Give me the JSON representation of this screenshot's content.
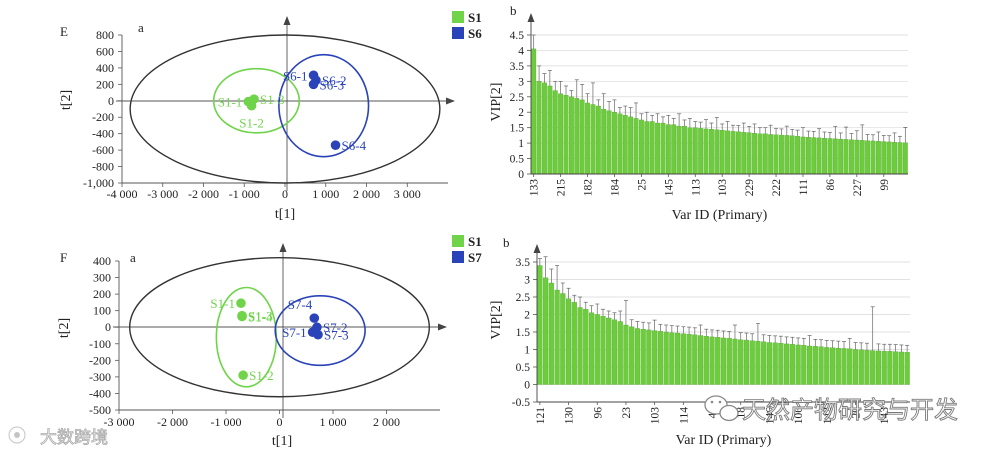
{
  "colors": {
    "s1": "#6fd44a",
    "other": "#2a43b8",
    "bar": "#6ccc3c",
    "axis": "#333333"
  },
  "watermark": {
    "left_text": "大数跨境",
    "right_text": "天然产物研究与开发",
    "left_icon": "camera-logo-icon",
    "right_icon": "wechat-icon"
  },
  "chart_data": [
    {
      "id": "E-a",
      "type": "scatter",
      "panel_label": "E",
      "sub_label": "a",
      "xlabel": "t[1]",
      "ylabel": "t[2]",
      "xlim": [
        -4000,
        4000
      ],
      "ylim": [
        -1000,
        800
      ],
      "xticks": [
        -4000,
        -3000,
        -2000,
        -1000,
        0,
        1000,
        2000,
        3000
      ],
      "xtick_labels": [
        "-4 000",
        "-3 000",
        "-2 000",
        "-1 000",
        "0",
        "1 000",
        "2 000",
        "3 000"
      ],
      "yticks": [
        800,
        600,
        400,
        200,
        0,
        -200,
        -400,
        -600,
        -800,
        -1000
      ],
      "ytick_labels": [
        "800",
        "600",
        "400",
        "200",
        "0",
        "-200",
        "-400",
        "-600",
        "-800",
        "-1,000"
      ],
      "hotelling_ellipse": {
        "cx": 0,
        "cy": -100,
        "rx": 3800,
        "ry": 900
      },
      "group_ellipses": [
        {
          "group": "S1",
          "cx": -700,
          "cy": 0,
          "rx": 1050,
          "ry": 390
        },
        {
          "group": "S6",
          "cx": 950,
          "cy": -60,
          "rx": 1100,
          "ry": 620
        }
      ],
      "series": [
        {
          "name": "S1",
          "points": [
            {
              "label": "S1-1",
              "x": -900,
              "y": -10,
              "label_pos": "left"
            },
            {
              "label": "S1-3",
              "x": -760,
              "y": 20,
              "label_pos": "right"
            },
            {
              "label": "S1-2",
              "x": -820,
              "y": -60,
              "label_pos": "below"
            }
          ]
        },
        {
          "name": "S6",
          "points": [
            {
              "label": "S6-1",
              "x": 700,
              "y": 310,
              "label_pos": "left"
            },
            {
              "label": "S6-2",
              "x": 760,
              "y": 250,
              "label_pos": "right"
            },
            {
              "label": "S6-3",
              "x": 700,
              "y": 200,
              "label_pos": "right"
            },
            {
              "label": "S6-4",
              "x": 1240,
              "y": -540,
              "label_pos": "right"
            }
          ]
        }
      ],
      "legend": [
        "S1",
        "S6"
      ]
    },
    {
      "id": "E-b",
      "type": "bar",
      "sub_label": "b",
      "xlabel": "Var ID (Primary)",
      "ylabel": "VIP[2]",
      "ylim": [
        0,
        4.5
      ],
      "yticks": [
        0,
        0.5,
        1,
        1.5,
        2,
        2.5,
        3,
        3.5,
        4,
        4.5
      ],
      "ytick_labels": [
        "0",
        "0.5",
        "1",
        "1.5",
        "2",
        "2.5",
        "3",
        "3.5",
        "4",
        "4.5"
      ],
      "categories": [
        "133",
        "",
        "",
        "",
        "",
        "215",
        "",
        "",
        "",
        "",
        "182",
        "",
        "",
        "",
        "",
        "184",
        "",
        "",
        "",
        "",
        "25",
        "",
        "",
        "",
        "",
        "145",
        "",
        "",
        "",
        "",
        "113",
        "",
        "",
        "",
        "",
        "103",
        "",
        "",
        "",
        "",
        "229",
        "",
        "",
        "",
        "",
        "222",
        "",
        "",
        "",
        "",
        "111",
        "",
        "",
        "",
        "",
        "86",
        "",
        "",
        "",
        "",
        "227",
        "",
        "",
        "",
        "",
        "99",
        "",
        "",
        "",
        ""
      ],
      "values": [
        4.05,
        3.0,
        2.95,
        2.85,
        2.7,
        2.6,
        2.55,
        2.5,
        2.45,
        2.4,
        2.3,
        2.25,
        2.2,
        2.1,
        2.05,
        2.0,
        1.95,
        1.9,
        1.85,
        1.8,
        1.75,
        1.7,
        1.7,
        1.65,
        1.65,
        1.6,
        1.6,
        1.55,
        1.55,
        1.5,
        1.5,
        1.48,
        1.46,
        1.45,
        1.43,
        1.42,
        1.4,
        1.38,
        1.37,
        1.35,
        1.34,
        1.32,
        1.3,
        1.3,
        1.28,
        1.27,
        1.26,
        1.25,
        1.24,
        1.22,
        1.2,
        1.19,
        1.18,
        1.17,
        1.16,
        1.15,
        1.14,
        1.13,
        1.12,
        1.11,
        1.1,
        1.09,
        1.08,
        1.07,
        1.06,
        1.05,
        1.04,
        1.03,
        1.02,
        1.01
      ],
      "errors": [
        0.45,
        0.5,
        0.3,
        0.5,
        0.3,
        0.4,
        0.3,
        0.2,
        0.6,
        0.5,
        0.3,
        0.7,
        0.2,
        0.5,
        0.3,
        0.4,
        0.2,
        0.3,
        0.3,
        0.5,
        0.2,
        0.3,
        0.2,
        0.3,
        0.2,
        0.3,
        0.2,
        0.4,
        0.2,
        0.3,
        0.2,
        0.2,
        0.3,
        0.2,
        0.4,
        0.2,
        0.3,
        0.2,
        0.2,
        0.3,
        0.2,
        0.3,
        0.2,
        0.2,
        0.3,
        0.2,
        0.2,
        0.3,
        0.2,
        0.2,
        0.3,
        0.2,
        0.2,
        0.3,
        0.2,
        0.2,
        0.4,
        0.2,
        0.4,
        0.2,
        0.3,
        0.5,
        0.2,
        0.2,
        0.3,
        0.2,
        0.2,
        0.3,
        0.2,
        0.5
      ]
    },
    {
      "id": "F-a",
      "type": "scatter",
      "panel_label": "F",
      "sub_label": "a",
      "xlabel": "t[1]",
      "ylabel": "t[2]",
      "xlim": [
        -3000,
        3000
      ],
      "ylim": [
        -500,
        400
      ],
      "xticks": [
        -3000,
        -2000,
        -1000,
        0,
        1000,
        2000
      ],
      "xtick_labels": [
        "-3 000",
        "-2 000",
        "-1 000",
        "0",
        "1 000",
        "2 000"
      ],
      "yticks": [
        400,
        300,
        200,
        100,
        0,
        -100,
        -200,
        -300,
        -400,
        -500
      ],
      "ytick_labels": [
        "400",
        "300",
        "200",
        "100",
        "0",
        "-100",
        "-200",
        "-300",
        "-400",
        "-500"
      ],
      "hotelling_ellipse": {
        "cx": 0,
        "cy": 0,
        "rx": 2800,
        "ry": 420
      },
      "group_ellipses": [
        {
          "group": "S1",
          "cx": -620,
          "cy": -60,
          "rx": 560,
          "ry": 300
        },
        {
          "group": "S7",
          "cx": 760,
          "cy": -20,
          "rx": 840,
          "ry": 210
        }
      ],
      "series": [
        {
          "name": "S1",
          "points": [
            {
              "label": "S1-1",
              "x": -720,
              "y": 145,
              "label_pos": "left"
            },
            {
              "label": "S1-3",
              "x": -700,
              "y": 70,
              "label_pos": "right"
            },
            {
              "label": "S1-4",
              "x": -700,
              "y": 65,
              "label_pos": "right"
            },
            {
              "label": "S1-2",
              "x": -680,
              "y": -290,
              "label_pos": "right"
            }
          ]
        },
        {
          "name": "S7",
          "points": [
            {
              "label": "S7-4",
              "x": 650,
              "y": 55,
              "label_pos": "above-left"
            },
            {
              "label": "S7-2",
              "x": 700,
              "y": 0,
              "label_pos": "right"
            },
            {
              "label": "S7-1",
              "x": 620,
              "y": -30,
              "label_pos": "left"
            },
            {
              "label": "S7-3",
              "x": 720,
              "y": -45,
              "label_pos": "right"
            }
          ]
        }
      ],
      "legend": [
        "S1",
        "S7"
      ]
    },
    {
      "id": "F-b",
      "type": "bar",
      "sub_label": "b",
      "xlabel": "Var ID (Primary)",
      "ylabel": "VIP[2]",
      "ylim": [
        -0.5,
        3.5
      ],
      "yticks": [
        -0.5,
        0,
        0.5,
        1,
        1.5,
        2,
        2.5,
        3,
        3.5
      ],
      "ytick_labels": [
        "-0.5",
        "0",
        "0.5",
        "1",
        "1.5",
        "2",
        "2.5",
        "3",
        "3.5"
      ],
      "categories": [
        "121",
        "",
        "",
        "",
        "",
        "130",
        "",
        "",
        "",
        "",
        "96",
        "",
        "",
        "",
        "",
        "23",
        "",
        "",
        "",
        "",
        "103",
        "",
        "",
        "",
        "",
        "114",
        "",
        "",
        "",
        "",
        "49",
        "",
        "",
        "",
        "",
        "18",
        "",
        "",
        "",
        "",
        "146",
        "",
        "",
        "",
        "",
        "106",
        "",
        "",
        "",
        "",
        "142",
        "",
        "",
        "",
        "",
        "20",
        "",
        "",
        "",
        "",
        "143",
        "",
        "",
        "",
        ""
      ],
      "values": [
        3.4,
        3.05,
        2.9,
        2.7,
        2.6,
        2.45,
        2.35,
        2.2,
        2.15,
        2.05,
        2.0,
        1.95,
        1.9,
        1.85,
        1.8,
        1.7,
        1.65,
        1.6,
        1.58,
        1.56,
        1.54,
        1.52,
        1.5,
        1.48,
        1.47,
        1.45,
        1.44,
        1.42,
        1.4,
        1.38,
        1.36,
        1.35,
        1.33,
        1.32,
        1.3,
        1.28,
        1.27,
        1.25,
        1.24,
        1.22,
        1.2,
        1.19,
        1.18,
        1.16,
        1.15,
        1.13,
        1.12,
        1.1,
        1.09,
        1.08,
        1.06,
        1.05,
        1.04,
        1.03,
        1.02,
        1.0,
        0.99,
        0.98,
        0.97,
        0.96,
        0.95,
        0.95,
        0.94,
        0.93,
        0.92
      ],
      "errors": [
        0.2,
        0.6,
        0.4,
        0.7,
        0.3,
        0.3,
        0.2,
        0.3,
        0.2,
        0.2,
        0.3,
        0.2,
        0.2,
        0.2,
        0.3,
        0.7,
        0.2,
        0.2,
        0.2,
        0.2,
        0.3,
        0.2,
        0.2,
        0.2,
        0.2,
        0.2,
        0.2,
        0.2,
        0.3,
        0.2,
        0.2,
        0.2,
        0.2,
        0.2,
        0.4,
        0.2,
        0.2,
        0.2,
        0.5,
        0.2,
        0.2,
        0.2,
        0.2,
        0.2,
        0.2,
        0.2,
        0.2,
        0.3,
        0.2,
        0.2,
        0.2,
        0.2,
        0.2,
        0.2,
        0.3,
        0.2,
        0.2,
        0.2,
        1.25,
        0.2,
        0.2,
        0.2,
        0.2,
        0.2,
        0.2
      ]
    }
  ]
}
